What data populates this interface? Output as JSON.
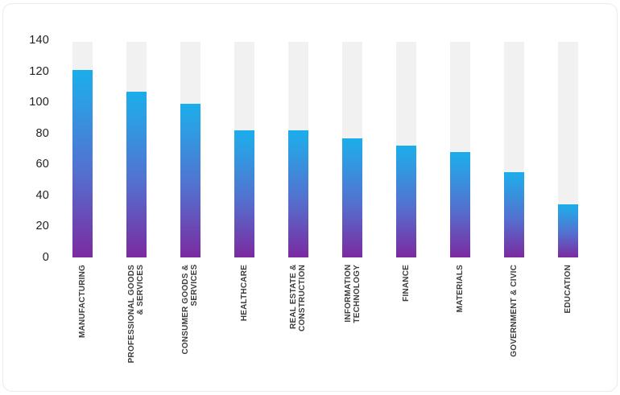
{
  "chart_data": {
    "type": "bar",
    "title": "",
    "xlabel": "",
    "ylabel": "",
    "categories": [
      "MANUFACTURING",
      "PROFESSIONAL GOODS\n& SERVICES",
      "CONSUMER GOODS &\nSERVICES",
      "HEALTHCARE",
      "REAL ESTATE &\nCONSTRUCTION",
      "INFORMATION\nTECHNOLOGY",
      "FINANCE",
      "MATERIALS",
      "GOVERNMENT & CIVIC",
      "EDUCATION"
    ],
    "values": [
      121,
      107,
      99,
      82,
      82,
      77,
      72,
      68,
      55,
      34
    ],
    "ylim": [
      0,
      140
    ],
    "yticks": [
      140,
      120,
      100,
      80,
      60,
      40,
      20,
      0
    ],
    "background_track_value": 139,
    "grid": false,
    "legend": false,
    "colors": {
      "bar_gradient_top": "#1badeb",
      "bar_gradient_upper": "#2ba0e4",
      "bar_gradient_mid": "#5470cf",
      "bar_gradient_bottom": "#7b2aa0",
      "track": "#f1f1f1",
      "tick_text": "#212121",
      "category_text": "#3d3d3d",
      "card_border": "#ebebeb",
      "background": "#ffffff"
    }
  }
}
